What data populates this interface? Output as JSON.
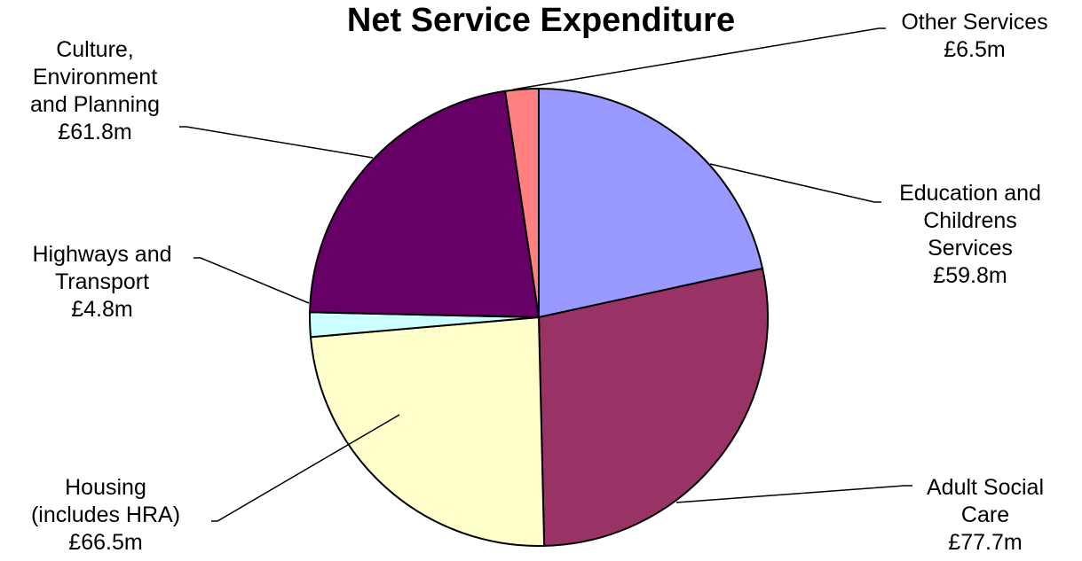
{
  "chart_data": {
    "type": "pie",
    "title": "Net Service Expenditure",
    "slices": [
      {
        "name": "Education and Childrens Services",
        "value": 59.8,
        "color": "#9999ff",
        "label_lines": [
          "Education and",
          "Childrens",
          "Services",
          "£59.8m"
        ]
      },
      {
        "name": "Adult Social Care",
        "value": 77.7,
        "color": "#993366",
        "label_lines": [
          "Adult Social",
          "Care",
          "£77.7m"
        ]
      },
      {
        "name": "Housing (includes HRA)",
        "value": 66.5,
        "color": "#ffffcc",
        "label_lines": [
          "Housing",
          "(includes HRA)",
          "£66.5m"
        ]
      },
      {
        "name": "Highways and Transport",
        "value": 4.8,
        "color": "#ccffff",
        "label_lines": [
          "Highways and",
          "Transport",
          "£4.8m"
        ]
      },
      {
        "name": "Culture, Environment and Planning",
        "value": 61.8,
        "color": "#660066",
        "label_lines": [
          "Culture,",
          "Environment",
          "and Planning",
          "£61.8m"
        ]
      },
      {
        "name": "Other Services",
        "value": 6.5,
        "color": "#ff8080",
        "label_lines": [
          "Other Services",
          "£6.5m"
        ]
      }
    ],
    "start_angle": "12 o'clock",
    "direction": "clockwise",
    "legend": "none"
  }
}
